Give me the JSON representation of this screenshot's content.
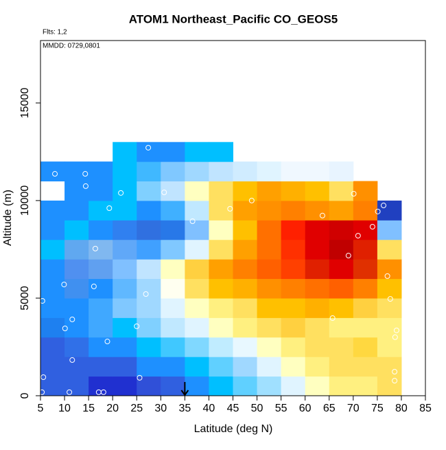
{
  "chart_data": {
    "type": "heatmap",
    "title": "ATOM1 Northeast_Pacific CO_GEOS5",
    "annotations": [
      "Flts: 1,2",
      "MMDD: 0729,0801"
    ],
    "x_label": "Latitude (deg N)",
    "y_label": "Altitude (m)",
    "xlim": [
      5,
      85
    ],
    "ylim": [
      0,
      18200
    ],
    "xticks": [
      5,
      10,
      15,
      20,
      25,
      30,
      35,
      40,
      45,
      50,
      55,
      60,
      65,
      70,
      75,
      80,
      85
    ],
    "yticks": [
      0,
      5000,
      10000,
      15000
    ],
    "cell_x": [
      5,
      10,
      15,
      20,
      25,
      30,
      35,
      40,
      45,
      50,
      55,
      60,
      65,
      70,
      75,
      80
    ],
    "cell_y": [
      0,
      1000,
      2000,
      3000,
      4000,
      5000,
      6000,
      7000,
      8000,
      9000,
      10000,
      11000,
      12000,
      13000
    ],
    "cell_colors": [
      [
        "#3060e0",
        "#3060e0",
        "#2030d0",
        "#2030d0",
        "#3050d8",
        "#3060e0",
        "#1e90ff",
        "#00bfff",
        "#60d0ff",
        "#a0e0ff",
        "#e0f4ff",
        "#ffffc0",
        "#fff080",
        "#fff080",
        "#ffe060"
      ],
      [
        "#3060e0",
        "#3060e0",
        "#3060e0",
        "#3060e0",
        "#1e90ff",
        "#1e90ff",
        "#00bfff",
        "#60d0ff",
        "#a0d8ff",
        "#e0f4ff",
        "#ffffc0",
        "#fff080",
        "#ffe060",
        "#ffe060",
        "#ffe060"
      ],
      [
        "#3060e0",
        "#3070e8",
        "#1e90ff",
        "#1e90ff",
        "#00bfff",
        "#40c8ff",
        "#80d8ff",
        "#c0ecff",
        "#e8f8ff",
        "#ffffc0",
        "#fff080",
        "#ffe060",
        "#ffe060",
        "#ffd840",
        "#fff080"
      ],
      [
        "#1e80f0",
        "#1e90ff",
        "#40a8ff",
        "#00bfff",
        "#80d0ff",
        "#c0e8ff",
        "#e0f4ff",
        "#ffffc0",
        "#fff080",
        "#ffe060",
        "#ffd040",
        "#ffe060",
        "#fff080",
        "#fff080",
        "#fff080"
      ],
      [
        "#1e90ff",
        "#1e90ff",
        "#40a8ff",
        "#80c8ff",
        "#a0d8ff",
        "#e0f4ff",
        "#ffffc0",
        "#fff080",
        "#ffe060",
        "#ffc000",
        "#ffc000",
        "#ffb000",
        "#ffc000",
        "#ffd040",
        "#ffe060"
      ],
      [
        "#1e90ff",
        "#4090f0",
        "#1e90ff",
        "#60b8ff",
        "#a0d8ff",
        "#fffff0",
        "#ffe060",
        "#ffc000",
        "#ffb000",
        "#ff9000",
        "#ff8000",
        "#ff7000",
        "#ff6000",
        "#ff8000",
        "#ffc000"
      ],
      [
        "#1e90ff",
        "#5090f0",
        "#60a0f0",
        "#80c0ff",
        "#c0e4ff",
        "#ffffc0",
        "#ffd040",
        "#ffa000",
        "#ff8000",
        "#ff6000",
        "#ff4000",
        "#e02000",
        "#e00000",
        "#e03000",
        "#ff9000"
      ],
      [
        "#00bfff",
        "#60a8f0",
        "#80b8f0",
        "#60a8f8",
        "#40a0ff",
        "#80c8ff",
        "#e0f4ff",
        "#ffe060",
        "#ffa000",
        "#ff7000",
        "#ff3000",
        "#e00000",
        "#c00000",
        "#e02000",
        "#ffe060"
      ],
      [
        "#1e90ff",
        "#00bfff",
        "#1e90ff",
        "#3080f0",
        "#3070e0",
        "#2878e8",
        "#80c0ff",
        "#ffffc0",
        "#ffc000",
        "#ff7000",
        "#ff2000",
        "#e00000",
        "#d00000",
        "#e00000",
        "#80c0ff"
      ],
      [
        "#1e90ff",
        "#1e90ff",
        "#00bfff",
        "#00bfff",
        "#1e90ff",
        "#40b0ff",
        "#c0e8ff",
        "#ffe060",
        "#ffa000",
        "#ff9000",
        "#ff8000",
        "#ff9000",
        "#ffa000",
        "#ff8000",
        "#2040c0"
      ],
      [
        null,
        "#1e90ff",
        "#1e90ff",
        "#00bfff",
        "#80d0ff",
        "#c0e4ff",
        "#ffffc0",
        "#ffe060",
        "#ffc000",
        "#ffa000",
        "#ffb000",
        "#ffc000",
        "#ffe060",
        "#ff9000",
        null
      ],
      [
        "#1e90ff",
        "#1e90ff",
        "#1e90ff",
        "#00bfff",
        "#40b8ff",
        "#80c8ff",
        "#a0d8ff",
        "#c0e4ff",
        "#d0ecff",
        "#e0f4ff",
        "#f0f8ff",
        "#f0f8ff",
        "#e8f4ff",
        null,
        null
      ],
      [
        null,
        null,
        null,
        "#00bfff",
        "#1e90ff",
        "#1e90ff",
        "#00bfff",
        "#00bfff",
        null,
        null,
        null,
        null,
        null,
        null,
        null
      ]
    ],
    "points": {
      "x": [
        8,
        14.3,
        14.4,
        21.7,
        30.7,
        19.3,
        27.4,
        36.6,
        44.4,
        48.9,
        63.6,
        70.1,
        75.1,
        76.3,
        74,
        71,
        69,
        16.4,
        9.9,
        16.1,
        5.4,
        26.9,
        77.1,
        77.7,
        65.7,
        11.6,
        10.1,
        25,
        18.9,
        79,
        78.7,
        11.6,
        5.6,
        25.6,
        78.6,
        78.6,
        5.3,
        11,
        17.1,
        18.1
      ],
      "y": [
        11370,
        11370,
        10740,
        10390,
        10420,
        9610,
        12710,
        8940,
        9580,
        10000,
        9230,
        10350,
        9440,
        9750,
        8660,
        8200,
        7180,
        7540,
        5700,
        5600,
        4860,
        5210,
        6130,
        4960,
        3980,
        3910,
        3450,
        3560,
        2780,
        3350,
        3000,
        1830,
        950,
        920,
        1230,
        770,
        180,
        180,
        180,
        180
      ]
    },
    "arrow_x": 35
  }
}
